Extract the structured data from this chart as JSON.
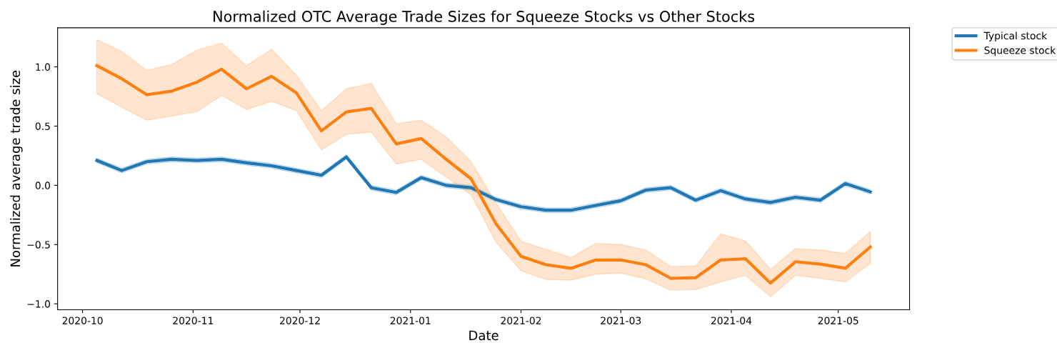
{
  "chart_data": {
    "type": "line",
    "title": "Normalized OTC Average Trade Sizes for Squeeze Stocks vs Other Stocks",
    "xlabel": "Date",
    "ylabel": "Normalized average trade size",
    "x": [
      "2020-10-05",
      "2020-10-12",
      "2020-10-19",
      "2020-10-26",
      "2020-11-02",
      "2020-11-09",
      "2020-11-16",
      "2020-11-23",
      "2020-11-30",
      "2020-12-07",
      "2020-12-14",
      "2020-12-21",
      "2020-12-28",
      "2021-01-04",
      "2021-01-11",
      "2021-01-18",
      "2021-01-25",
      "2021-02-01",
      "2021-02-08",
      "2021-02-15",
      "2021-02-22",
      "2021-03-01",
      "2021-03-08",
      "2021-03-15",
      "2021-03-22",
      "2021-03-29",
      "2021-04-05",
      "2021-04-12",
      "2021-04-19",
      "2021-04-26",
      "2021-05-03",
      "2021-05-10"
    ],
    "series": [
      {
        "name": "Typical stock",
        "color": "#1f77b4",
        "values": [
          0.21,
          0.125,
          0.2,
          0.22,
          0.21,
          0.22,
          0.19,
          0.165,
          0.125,
          0.085,
          0.24,
          -0.02,
          -0.06,
          0.065,
          0.0,
          -0.02,
          -0.12,
          -0.18,
          -0.21,
          -0.21,
          -0.17,
          -0.13,
          -0.04,
          -0.02,
          -0.125,
          -0.045,
          -0.115,
          -0.145,
          -0.1,
          -0.125,
          0.015,
          -0.055
        ],
        "lower": [
          0.19,
          0.105,
          0.18,
          0.2,
          0.19,
          0.2,
          0.17,
          0.145,
          0.105,
          0.065,
          0.22,
          -0.04,
          -0.08,
          0.045,
          -0.02,
          -0.04,
          -0.14,
          -0.2,
          -0.23,
          -0.23,
          -0.19,
          -0.15,
          -0.06,
          -0.04,
          -0.145,
          -0.065,
          -0.135,
          -0.165,
          -0.12,
          -0.145,
          -0.005,
          -0.075
        ],
        "upper": [
          0.23,
          0.145,
          0.22,
          0.24,
          0.23,
          0.24,
          0.21,
          0.185,
          0.145,
          0.105,
          0.26,
          0.0,
          -0.04,
          0.085,
          0.02,
          0.0,
          -0.1,
          -0.16,
          -0.19,
          -0.19,
          -0.15,
          -0.11,
          -0.02,
          0.0,
          -0.105,
          -0.025,
          -0.095,
          -0.125,
          -0.08,
          -0.105,
          0.035,
          -0.035
        ]
      },
      {
        "name": "Squeeze stock",
        "color": "#ff7f0e",
        "values": [
          1.01,
          0.9,
          0.765,
          0.795,
          0.87,
          0.98,
          0.815,
          0.92,
          0.78,
          0.46,
          0.62,
          0.65,
          0.35,
          0.395,
          0.22,
          0.055,
          -0.325,
          -0.6,
          -0.67,
          -0.7,
          -0.63,
          -0.63,
          -0.67,
          -0.785,
          -0.78,
          -0.63,
          -0.62,
          -0.825,
          -0.645,
          -0.665,
          -0.7,
          -0.52
        ],
        "lower": [
          0.775,
          0.66,
          0.55,
          0.585,
          0.62,
          0.76,
          0.64,
          0.71,
          0.63,
          0.3,
          0.43,
          0.45,
          0.18,
          0.22,
          0.07,
          -0.08,
          -0.48,
          -0.72,
          -0.795,
          -0.8,
          -0.75,
          -0.74,
          -0.79,
          -0.885,
          -0.88,
          -0.815,
          -0.76,
          -0.94,
          -0.76,
          -0.785,
          -0.815,
          -0.66
        ],
        "upper": [
          1.23,
          1.13,
          0.97,
          1.02,
          1.14,
          1.2,
          1.01,
          1.15,
          0.93,
          0.63,
          0.815,
          0.86,
          0.52,
          0.55,
          0.41,
          0.2,
          -0.15,
          -0.47,
          -0.54,
          -0.61,
          -0.49,
          -0.5,
          -0.545,
          -0.685,
          -0.68,
          -0.41,
          -0.47,
          -0.71,
          -0.535,
          -0.545,
          -0.575,
          -0.39
        ]
      }
    ],
    "xlim": [
      "2020-09-24",
      "2021-05-21"
    ],
    "xticks": [
      {
        "value": "2020-10-01",
        "label": "2020-10"
      },
      {
        "value": "2020-11-01",
        "label": "2020-11"
      },
      {
        "value": "2020-12-01",
        "label": "2020-12"
      },
      {
        "value": "2021-01-01",
        "label": "2021-01"
      },
      {
        "value": "2021-02-01",
        "label": "2021-02"
      },
      {
        "value": "2021-03-01",
        "label": "2021-03"
      },
      {
        "value": "2021-04-01",
        "label": "2021-04"
      },
      {
        "value": "2021-05-01",
        "label": "2021-05"
      }
    ],
    "ylim": [
      -1.05,
      1.33
    ],
    "yticks": [
      {
        "value": -1.0,
        "label": "−1.0"
      },
      {
        "value": -0.5,
        "label": "−0.5"
      },
      {
        "value": 0.0,
        "label": "0.0"
      },
      {
        "value": 0.5,
        "label": "0.5"
      },
      {
        "value": 1.0,
        "label": "1.0"
      }
    ],
    "grid": false,
    "legend": "right",
    "line_style": "solid",
    "marker": "none"
  }
}
